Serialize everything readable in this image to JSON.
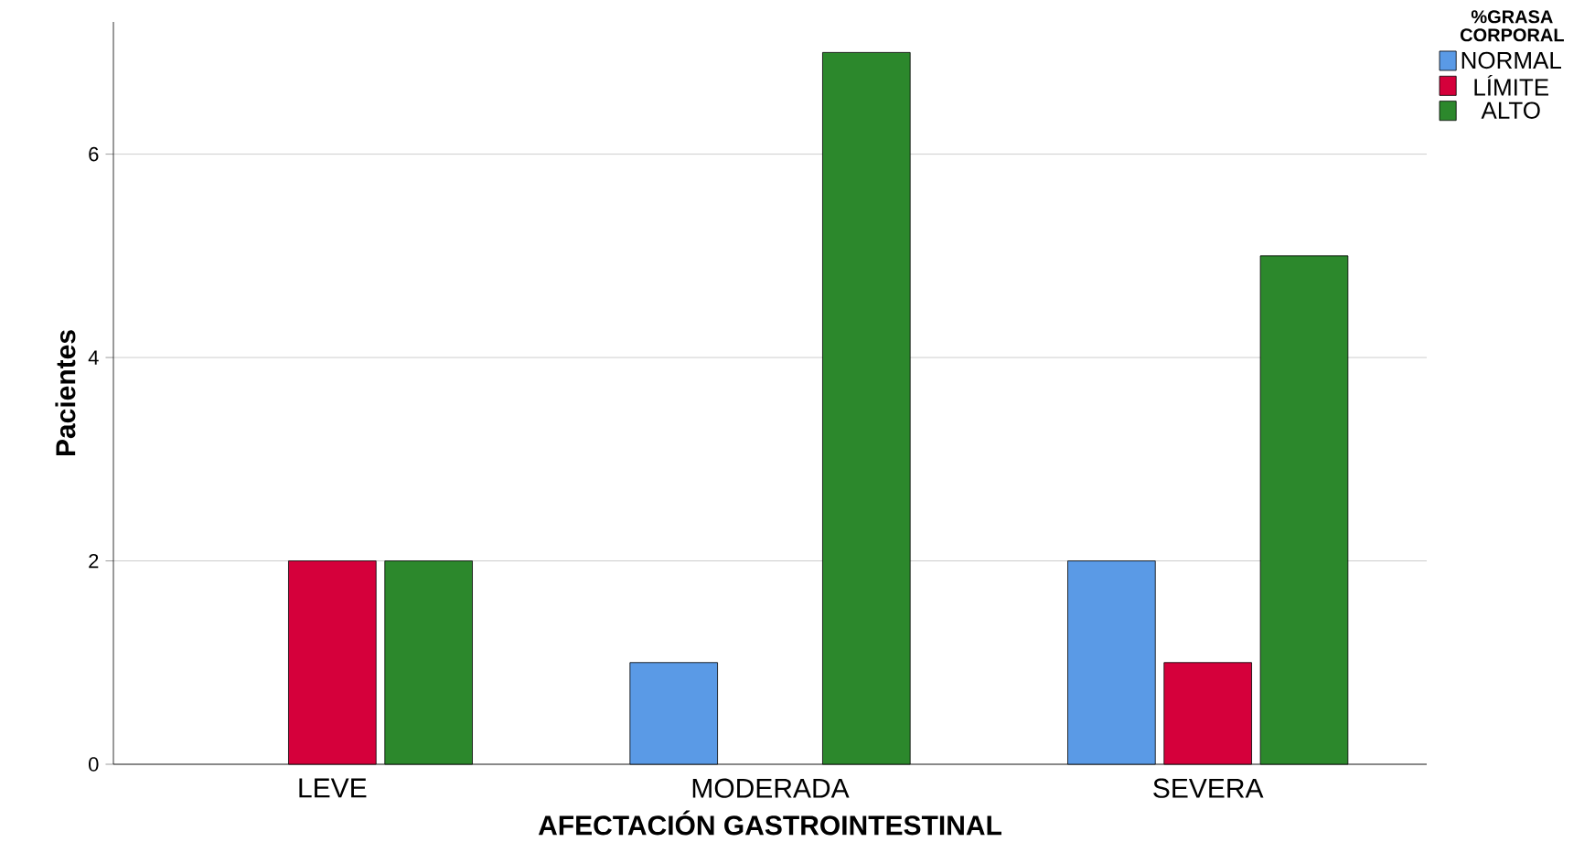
{
  "chart_data": {
    "type": "bar",
    "xlabel": "AFECTACIÓN GASTROINTESTINAL",
    "ylabel": "Pacientes",
    "legend_title": "%GRASA CORPORAL",
    "categories": [
      "LEVE",
      "MODERADA",
      "SEVERA"
    ],
    "series": [
      {
        "name": "NORMAL",
        "color": "#5a9ae6",
        "values": [
          null,
          1,
          2
        ]
      },
      {
        "name": "LÍMITE",
        "color": "#d5003b",
        "values": [
          2,
          null,
          1
        ]
      },
      {
        "name": "ALTO",
        "color": "#2c882c",
        "values": [
          2,
          7,
          5
        ]
      }
    ],
    "ylim": [
      0,
      7.3
    ],
    "yticks": [
      0,
      2,
      4,
      6
    ],
    "grid": "y",
    "legend": "top right"
  }
}
